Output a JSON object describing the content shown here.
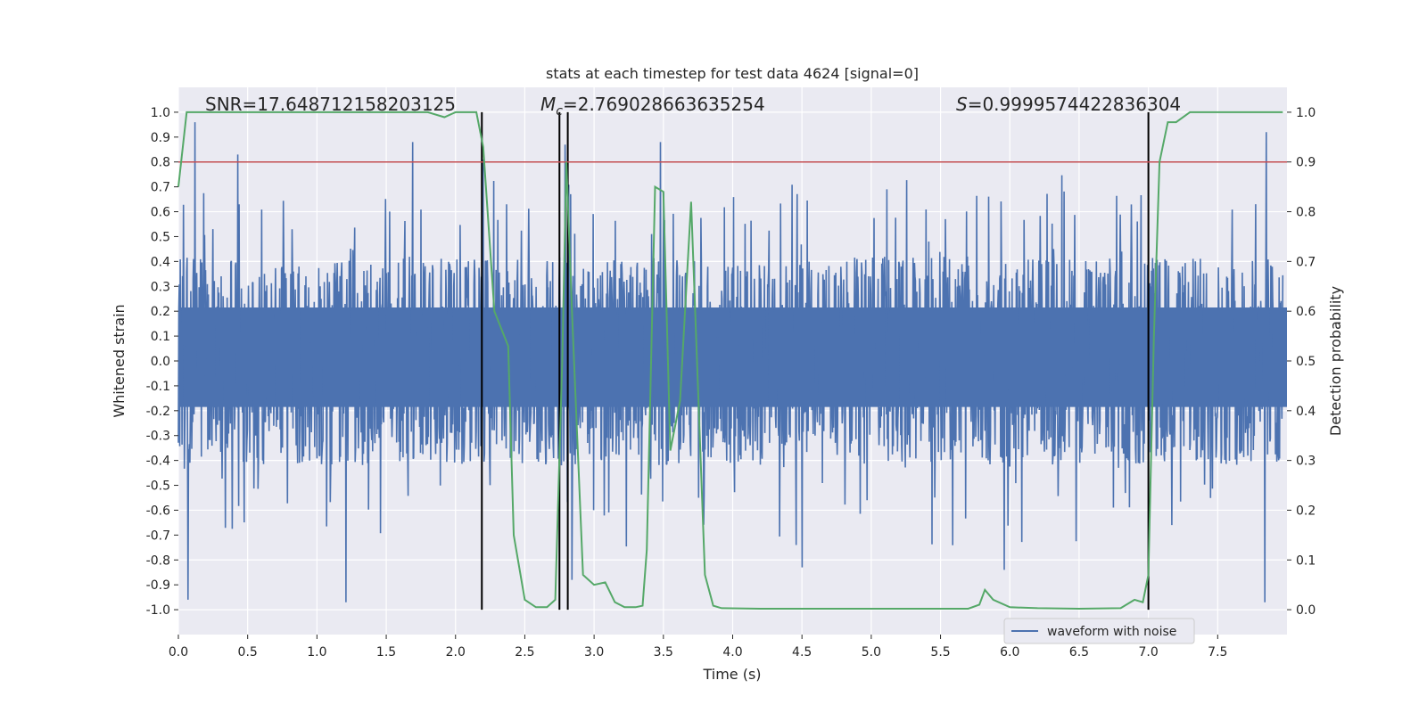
{
  "chart_data": {
    "type": "line",
    "title": "stats at each timestep for test data 4624 [signal=0]",
    "xlabel": "Time (s)",
    "ylabel": "Whitened strain",
    "ylabel_right": "Detection probability",
    "xlim": [
      0.0,
      8.0
    ],
    "ylim": [
      -1.1,
      1.1
    ],
    "ylim_right": [
      -0.05,
      1.05
    ],
    "x_ticks": [
      "0.0",
      "0.5",
      "1.0",
      "1.5",
      "2.0",
      "2.5",
      "3.0",
      "3.5",
      "4.0",
      "4.5",
      "5.0",
      "5.5",
      "6.0",
      "6.5",
      "7.0",
      "7.5"
    ],
    "y_ticks": [
      "1.0",
      "0.9",
      "0.8",
      "0.7",
      "0.6",
      "0.5",
      "0.4",
      "0.3",
      "0.2",
      "0.1",
      "0.0",
      "-0.1",
      "-0.2",
      "-0.3",
      "-0.4",
      "-0.5",
      "-0.6",
      "-0.7",
      "-0.8",
      "-0.9",
      "-1.0"
    ],
    "y_ticks_right": [
      "1.0",
      "0.9",
      "0.8",
      "0.7",
      "0.6",
      "0.5",
      "0.4",
      "0.3",
      "0.2",
      "0.1",
      "0.0"
    ],
    "grid": true,
    "legend_placement": "lower-right",
    "annotations": {
      "snr": "SNR=17.648712158203125",
      "mc_symbol": "M",
      "mc_sub": "c",
      "mc_value": "=2.769028663635254",
      "s_symbol": "S",
      "s_value": "=0.9999574422836304"
    },
    "threshold": {
      "value": 0.9,
      "axis": "right",
      "color": "#c44e52"
    },
    "vertical_markers": [
      2.19,
      2.75,
      2.81,
      7.0
    ],
    "series": [
      {
        "name": "waveform with noise",
        "axis": "left",
        "color": "#4c72b0",
        "style": "noise",
        "envelope": 0.42,
        "spike_peaks": [
          {
            "x": 0.12,
            "y": 0.96
          },
          {
            "x": 0.43,
            "y": 0.83
          },
          {
            "x": 1.69,
            "y": 0.88
          },
          {
            "x": 2.2,
            "y": 0.81
          },
          {
            "x": 2.79,
            "y": 0.87
          },
          {
            "x": 3.48,
            "y": 0.88
          },
          {
            "x": 4.5,
            "y": 0.85
          },
          {
            "x": 7.85,
            "y": 0.92
          },
          {
            "x": 0.07,
            "y": -0.96
          },
          {
            "x": 1.21,
            "y": -0.97
          },
          {
            "x": 2.84,
            "y": -0.88
          },
          {
            "x": 4.5,
            "y": -0.83
          },
          {
            "x": 5.96,
            "y": -0.84
          },
          {
            "x": 7.84,
            "y": -0.97
          }
        ]
      },
      {
        "name": "detection probability",
        "axis": "right",
        "color": "#55a868",
        "x": [
          0.0,
          0.06,
          0.2,
          0.5,
          1.0,
          1.5,
          1.8,
          1.92,
          2.0,
          2.1,
          2.15,
          2.2,
          2.28,
          2.38,
          2.42,
          2.5,
          2.58,
          2.66,
          2.72,
          2.77,
          2.8,
          2.84,
          2.92,
          3.0,
          3.08,
          3.15,
          3.22,
          3.3,
          3.35,
          3.38,
          3.44,
          3.5,
          3.55,
          3.62,
          3.7,
          3.8,
          3.86,
          3.92,
          4.2,
          4.6,
          5.0,
          5.4,
          5.7,
          5.78,
          5.82,
          5.88,
          6.0,
          6.2,
          6.5,
          6.8,
          6.9,
          6.96,
          7.0,
          7.04,
          7.08,
          7.14,
          7.2,
          7.3,
          7.6,
          7.97
        ],
        "y": [
          0.85,
          1.0,
          1.0,
          1.0,
          1.0,
          1.0,
          1.0,
          0.99,
          1.0,
          1.0,
          1.0,
          0.93,
          0.6,
          0.53,
          0.15,
          0.02,
          0.005,
          0.005,
          0.02,
          0.5,
          0.9,
          0.6,
          0.07,
          0.05,
          0.055,
          0.015,
          0.005,
          0.005,
          0.008,
          0.12,
          0.85,
          0.84,
          0.32,
          0.42,
          0.82,
          0.07,
          0.008,
          0.003,
          0.002,
          0.002,
          0.002,
          0.002,
          0.002,
          0.01,
          0.04,
          0.02,
          0.005,
          0.003,
          0.002,
          0.003,
          0.02,
          0.015,
          0.07,
          0.55,
          0.9,
          0.98,
          0.98,
          1.0,
          1.0,
          1.0
        ]
      }
    ]
  }
}
